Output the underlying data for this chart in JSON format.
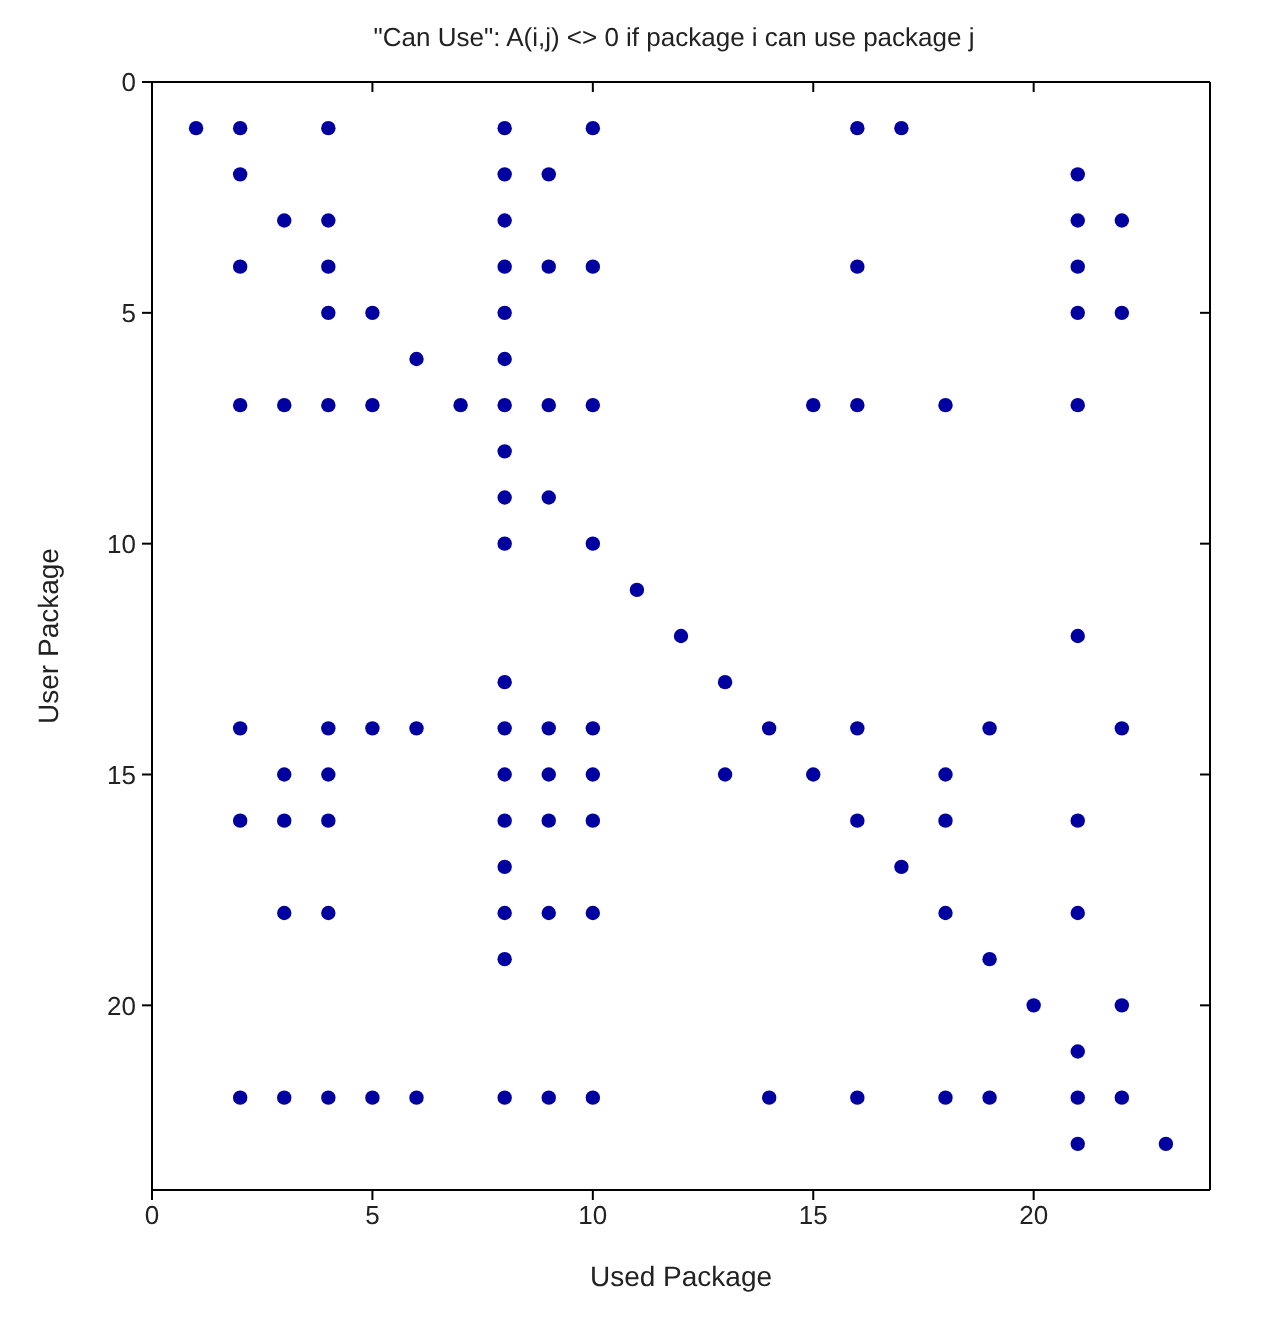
{
  "chart_data": {
    "type": "scatter",
    "title": "\"Can Use\": A(i,j) <> 0 if package i can use package j",
    "xlabel": "Used Package",
    "ylabel": "User Package",
    "xlim": [
      0,
      24
    ],
    "ylim": [
      24,
      0
    ],
    "xticks": [
      0,
      5,
      10,
      15,
      20
    ],
    "yticks": [
      0,
      5,
      10,
      15,
      20
    ],
    "marker": "circle",
    "legend": false,
    "series": [
      {
        "color": "#0000a0",
        "x": [
          1,
          2,
          4,
          8,
          10,
          16,
          17,
          2,
          8,
          9,
          21,
          3,
          4,
          8,
          21,
          22,
          2,
          4,
          8,
          9,
          10,
          16,
          21,
          4,
          5,
          8,
          21,
          22,
          6,
          8,
          2,
          3,
          4,
          5,
          7,
          8,
          9,
          10,
          15,
          16,
          18,
          21,
          8,
          8,
          9,
          8,
          10,
          11,
          12,
          21,
          8,
          13,
          2,
          4,
          5,
          6,
          8,
          9,
          10,
          14,
          16,
          19,
          22,
          3,
          4,
          8,
          9,
          10,
          13,
          15,
          18,
          2,
          3,
          4,
          8,
          9,
          10,
          16,
          18,
          21,
          8,
          17,
          3,
          4,
          8,
          9,
          10,
          18,
          21,
          8,
          19,
          20,
          22,
          21,
          2,
          3,
          4,
          5,
          6,
          8,
          9,
          10,
          14,
          16,
          18,
          19,
          21,
          22,
          21,
          23
        ],
        "values": [
          1,
          1,
          1,
          1,
          1,
          1,
          1,
          2,
          2,
          2,
          2,
          3,
          3,
          3,
          3,
          3,
          4,
          4,
          4,
          4,
          4,
          4,
          4,
          5,
          5,
          5,
          5,
          5,
          6,
          6,
          7,
          7,
          7,
          7,
          7,
          7,
          7,
          7,
          7,
          7,
          7,
          7,
          8,
          9,
          9,
          10,
          10,
          11,
          12,
          12,
          13,
          13,
          14,
          14,
          14,
          14,
          14,
          14,
          14,
          14,
          14,
          14,
          14,
          15,
          15,
          15,
          15,
          15,
          15,
          15,
          15,
          16,
          16,
          16,
          16,
          16,
          16,
          16,
          16,
          16,
          17,
          17,
          18,
          18,
          18,
          18,
          18,
          18,
          18,
          19,
          19,
          20,
          20,
          21,
          22,
          22,
          22,
          22,
          22,
          22,
          22,
          22,
          22,
          22,
          22,
          22,
          22,
          22,
          23,
          23
        ]
      }
    ]
  }
}
